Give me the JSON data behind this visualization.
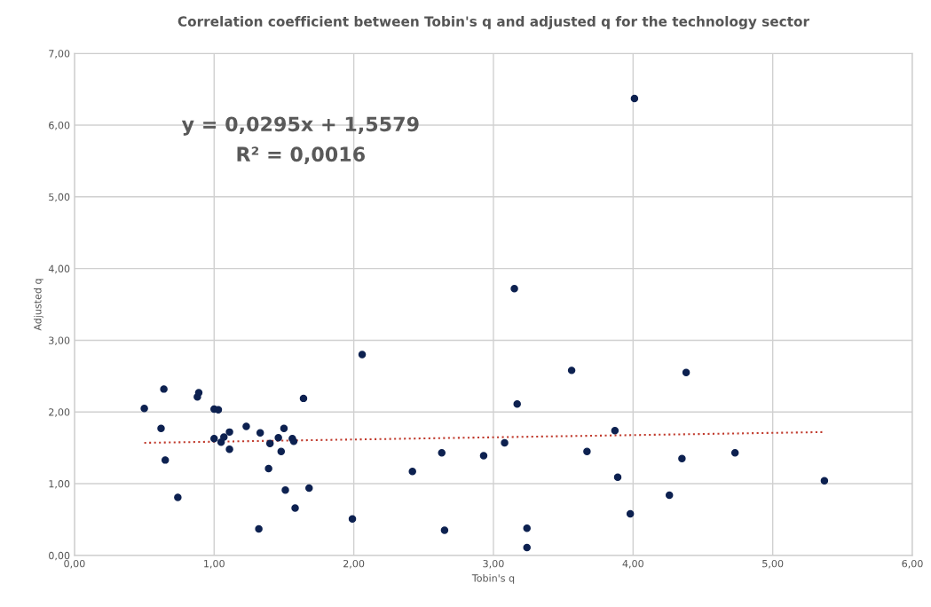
{
  "chart_data": {
    "type": "scatter",
    "title": "Correlation coefficient between Tobin's q and adjusted q for the technology sector",
    "xlabel": "Tobin's q",
    "ylabel": "Adjusted q",
    "annotations": [
      "y = 0,0295x + 1,5579",
      "R² = 0,0016"
    ],
    "series": [
      {
        "marker": "circle",
        "color": "#0d2150",
        "x": [
          0.5,
          0.64,
          0.62,
          0.65,
          0.74,
          0.88,
          0.89,
          1.0,
          1.03,
          1.0,
          1.05,
          1.07,
          1.11,
          1.11,
          1.23,
          1.33,
          1.32,
          1.4,
          1.39,
          1.46,
          1.5,
          1.48,
          1.56,
          1.57,
          1.51,
          1.58,
          1.64,
          1.68,
          1.99,
          4.01,
          3.15,
          2.06,
          3.56,
          4.38,
          3.17,
          3.87,
          3.08,
          2.63,
          2.93,
          2.42,
          3.67,
          4.35,
          4.73,
          3.89,
          4.26,
          3.98,
          2.65,
          3.24,
          3.24,
          5.37
        ],
        "values": [
          2.05,
          2.32,
          1.77,
          1.33,
          0.81,
          2.21,
          2.27,
          2.04,
          2.03,
          1.63,
          1.58,
          1.65,
          1.72,
          1.48,
          1.8,
          1.71,
          0.37,
          1.56,
          1.21,
          1.64,
          1.77,
          1.45,
          1.63,
          1.59,
          0.91,
          0.66,
          2.19,
          0.94,
          0.51,
          6.37,
          3.72,
          2.8,
          2.58,
          2.55,
          2.11,
          1.74,
          1.57,
          1.43,
          1.39,
          1.17,
          1.45,
          1.35,
          1.43,
          1.09,
          0.84,
          0.58,
          0.35,
          0.38,
          0.11,
          1.04
        ]
      },
      {
        "type": "line",
        "color": "#c0392b",
        "line_style": "dotted",
        "marker": "none",
        "x": [
          0.5,
          5.37
        ],
        "values": [
          1.57,
          1.72
        ]
      }
    ],
    "xlim": [
      0,
      6
    ],
    "xticks": [
      {
        "value": 0,
        "label": "0,00"
      },
      {
        "value": 1,
        "label": "1,00"
      },
      {
        "value": 2,
        "label": "2,00"
      },
      {
        "value": 3,
        "label": "3,00"
      },
      {
        "value": 4,
        "label": "4,00"
      },
      {
        "value": 5,
        "label": "5,00"
      },
      {
        "value": 6,
        "label": "6,00"
      }
    ],
    "ylim": [
      0,
      7
    ],
    "yticks": [
      {
        "value": 0,
        "label": "0,00"
      },
      {
        "value": 1,
        "label": "1,00"
      },
      {
        "value": 2,
        "label": "2,00"
      },
      {
        "value": 3,
        "label": "3,00"
      },
      {
        "value": 4,
        "label": "4,00"
      },
      {
        "value": 5,
        "label": "5,00"
      },
      {
        "value": 6,
        "label": "6,00"
      },
      {
        "value": 7,
        "label": "7,00"
      }
    ],
    "grid": true
  }
}
